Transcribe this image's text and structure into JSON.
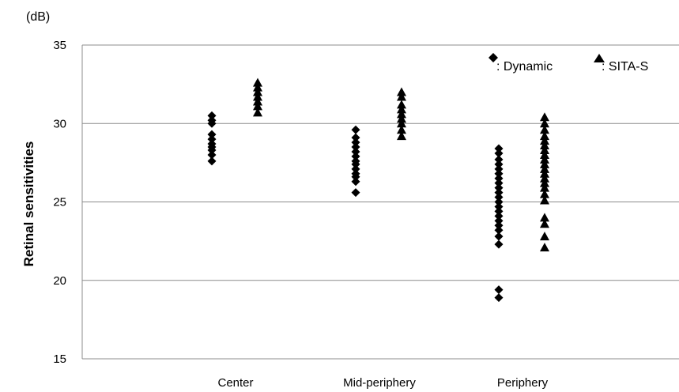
{
  "chart_data": {
    "type": "scatter",
    "title": "",
    "ylabel": "Retinal sensitivities",
    "yunit": "(dB)",
    "ylim": [
      15,
      35
    ],
    "yticks": [
      15,
      20,
      25,
      30,
      35
    ],
    "grid": true,
    "legend_position": "top-right",
    "categories": [
      "Center",
      "Mid-periphery",
      "Periphery"
    ],
    "series": [
      {
        "name": ": Dynamic",
        "marker": "diamond",
        "values": [
          [
            30.5,
            30.2,
            30.0,
            29.3,
            29.0,
            28.7,
            28.5,
            28.3,
            28.0,
            27.6
          ],
          [
            29.6,
            29.1,
            28.8,
            28.5,
            28.2,
            27.9,
            27.6,
            27.4,
            27.1,
            26.8,
            26.6,
            26.3,
            25.6
          ],
          [
            28.4,
            28.1,
            27.7,
            27.4,
            27.1,
            26.8,
            26.5,
            26.2,
            25.9,
            25.6,
            25.3,
            25.0,
            24.7,
            24.4,
            24.1,
            23.8,
            23.5,
            23.2,
            22.8,
            22.3,
            19.4,
            18.9
          ]
        ]
      },
      {
        "name": ": SITA-S",
        "marker": "triangle",
        "values": [
          [
            32.6,
            32.3,
            32.0,
            31.7,
            31.4,
            31.1,
            30.7
          ],
          [
            32.0,
            31.7,
            31.2,
            30.9,
            30.6,
            30.3,
            30.0,
            29.6,
            29.2
          ],
          [
            30.4,
            30.0,
            29.6,
            29.2,
            28.9,
            28.6,
            28.3,
            28.0,
            27.7,
            27.4,
            27.1,
            26.8,
            26.5,
            26.2,
            25.9,
            25.5,
            25.1,
            24.0,
            23.6,
            22.8,
            22.1
          ]
        ]
      }
    ]
  }
}
